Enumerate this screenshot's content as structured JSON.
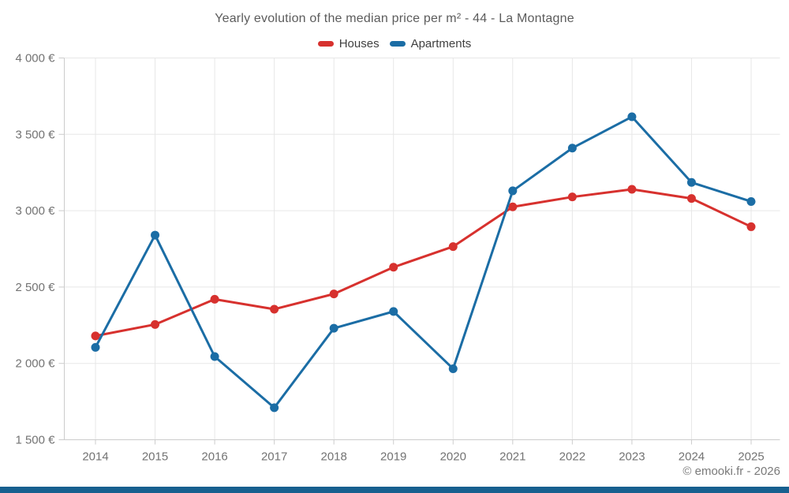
{
  "chart_data": {
    "type": "line",
    "title": "Yearly evolution of the median price per m² - 44 - La Montagne",
    "categories": [
      "2014",
      "2015",
      "2016",
      "2017",
      "2018",
      "2019",
      "2020",
      "2021",
      "2022",
      "2023",
      "2024",
      "2025"
    ],
    "series": [
      {
        "name": "Houses",
        "color": "#d7312e",
        "values": [
          2180,
          2255,
          2420,
          2355,
          2455,
          2630,
          2765,
          3025,
          3090,
          3140,
          3080,
          2895
        ]
      },
      {
        "name": "Apartments",
        "color": "#1b6da5",
        "values": [
          2105,
          2840,
          2045,
          1710,
          2230,
          2340,
          1965,
          3130,
          3410,
          3615,
          3185,
          3060
        ]
      }
    ],
    "y_axis": {
      "min": 1500,
      "max": 4000,
      "ticks": [
        {
          "value": 4000,
          "label": "4 000 €"
        },
        {
          "value": 3500,
          "label": "3 500 €"
        },
        {
          "value": 3000,
          "label": "3 000 €"
        },
        {
          "value": 2500,
          "label": "2 500 €"
        },
        {
          "value": 2000,
          "label": "2 000 €"
        },
        {
          "value": 1500,
          "label": "1 500 €"
        }
      ]
    },
    "grid": true,
    "legend_position": "top",
    "xlabel": "",
    "ylabel": ""
  },
  "footer": {
    "copyright": "© emooki.fr - 2026"
  },
  "colors": {
    "background": "#ffffff",
    "grid": "#e7e7e7",
    "axis": "#cccccc",
    "title_text": "#5c5c5c",
    "legend_text": "#3f3f3f",
    "tick_text": "#737373",
    "footer_text": "#7a7a7a",
    "bottom_bar": "#17608f"
  }
}
